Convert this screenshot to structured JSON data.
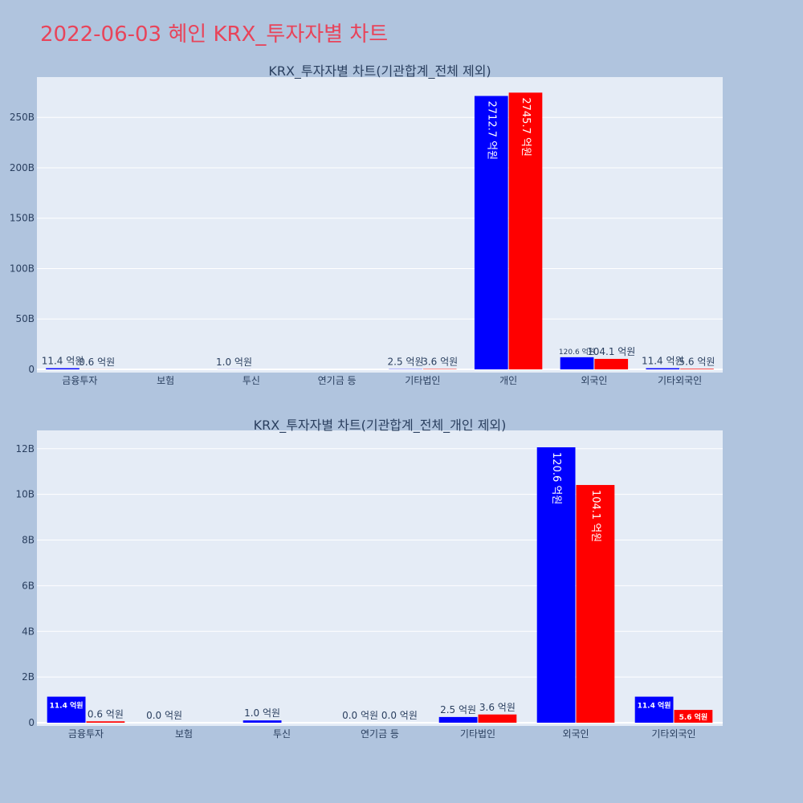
{
  "page": {
    "title": "2022-06-03 혜인 KRX_투자자별 차트"
  },
  "colors": {
    "buy": "#0000ff",
    "sell": "#ff0000",
    "plot_bg": "#e5ecf6",
    "page_bg": "#b0c4de",
    "title": "#e8445a"
  },
  "chart_data": [
    {
      "type": "bar",
      "title": "KRX_투자자별 차트(기관합계_전체 제외)",
      "categories": [
        "금융투자",
        "보험",
        "투신",
        "연기금 등",
        "기타법인",
        "개인",
        "외국인",
        "기타외국인"
      ],
      "series": [
        {
          "values": [
            1140000000.0,
            0,
            100000000.0,
            0,
            250000000.0,
            271270000000.0,
            12060000000.0,
            1140000000.0
          ],
          "labels": [
            "11.4 억원",
            "",
            "1.0 억원",
            "",
            "2.5 억원",
            "2712.7 억원",
            "120.6 억원",
            "11.4 억원"
          ]
        },
        {
          "values": [
            60000000.0,
            0,
            0,
            0,
            360000000.0,
            274570000000.0,
            10410000000.0,
            560000000.0
          ],
          "labels": [
            "0.6 억원",
            "",
            "",
            "",
            "3.6 억원",
            "2745.7 억원",
            "104.1 억원",
            "5.6 억원"
          ]
        }
      ],
      "yticks": [
        "0",
        "50B",
        "100B",
        "150B",
        "200B",
        "250B"
      ],
      "ylim": [
        0,
        290000000000.0
      ],
      "grid": true,
      "legend": "none"
    },
    {
      "type": "bar",
      "title": "KRX_투자자별 차트(기관합계_전체_개인 제외)",
      "categories": [
        "금융투자",
        "보험",
        "투신",
        "연기금 등",
        "기타법인",
        "외국인",
        "기타외국인"
      ],
      "series": [
        {
          "values": [
            1140000000.0,
            0,
            100000000.0,
            0,
            250000000.0,
            12060000000.0,
            1140000000.0
          ],
          "labels": [
            "11.4 억원",
            "0.0 억원",
            "1.0 억원",
            "0.0 억원",
            "2.5 억원",
            "120.6 억원",
            "11.4 억원"
          ]
        },
        {
          "values": [
            60000000.0,
            0,
            0,
            0,
            360000000.0,
            10410000000.0,
            560000000.0
          ],
          "labels": [
            "0.6 억원",
            "",
            "",
            "0.0 억원",
            "3.6 억원",
            "104.1 억원",
            "5.6 억원"
          ]
        }
      ],
      "yticks": [
        "0",
        "2B",
        "4B",
        "6B",
        "8B",
        "10B",
        "12B"
      ],
      "ylim": [
        0,
        12800000000.0
      ],
      "grid": true,
      "legend": "none"
    }
  ]
}
